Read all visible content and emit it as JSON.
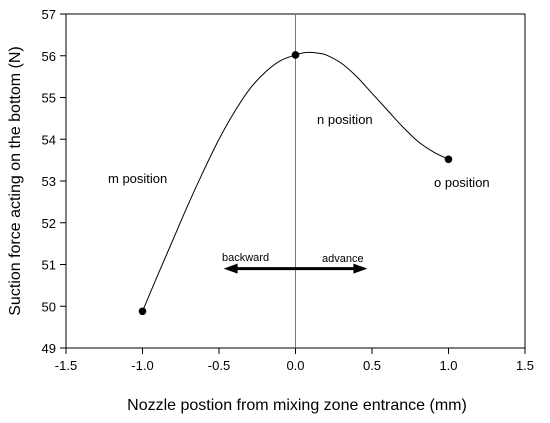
{
  "chart_data": {
    "type": "line",
    "title": "",
    "xlabel": "Nozzle postion from mixing zone entrance (mm)",
    "ylabel": "Suction force acting on the bottom (N)",
    "xlim": [
      -1.5,
      1.5
    ],
    "ylim": [
      49,
      57
    ],
    "x_ticks": [
      "-1.5",
      "-1.0",
      "-0.5",
      "0.0",
      "0.5",
      "1.0",
      "1.5"
    ],
    "y_ticks": [
      "49",
      "50",
      "51",
      "52",
      "53",
      "54",
      "55",
      "56",
      "57"
    ],
    "grid": false,
    "series": [
      {
        "points_x": [
          -1.0,
          0.0,
          1.0
        ],
        "points_y": [
          49.88,
          56.02,
          53.52
        ],
        "curve_x": [
          -1.0,
          -0.9,
          -0.8,
          -0.7,
          -0.6,
          -0.5,
          -0.4,
          -0.3,
          -0.2,
          -0.1,
          0.0,
          0.05,
          0.1,
          0.15,
          0.2,
          0.3,
          0.4,
          0.5,
          0.6,
          0.7,
          0.8,
          0.9,
          1.0
        ],
        "curve_y": [
          49.88,
          50.75,
          51.6,
          52.45,
          53.25,
          54.0,
          54.65,
          55.2,
          55.6,
          55.88,
          56.02,
          56.07,
          56.08,
          56.06,
          56.02,
          55.82,
          55.5,
          55.1,
          54.7,
          54.3,
          53.95,
          53.7,
          53.52
        ],
        "color": "#000000"
      }
    ],
    "reference_line": {
      "x": 0.0,
      "color": "#e84a3c"
    },
    "annotations": {
      "m_position": "m position",
      "n_position": "n position",
      "o_position": "o position",
      "backward": "backward",
      "advance": "advance"
    },
    "arrow": {
      "x_from": -0.47,
      "x_to": 0.47,
      "y": 50.9
    }
  }
}
